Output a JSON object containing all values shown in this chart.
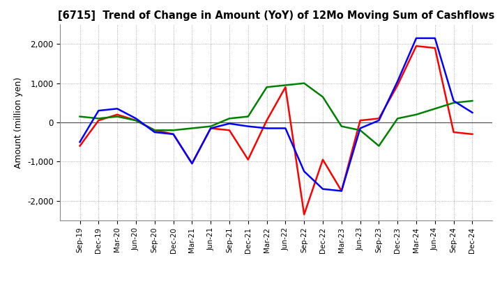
{
  "title": "[6715]  Trend of Change in Amount (YoY) of 12Mo Moving Sum of Cashflows",
  "ylabel": "Amount (million yen)",
  "x_labels": [
    "Sep-19",
    "Dec-19",
    "Mar-20",
    "Jun-20",
    "Sep-20",
    "Dec-20",
    "Mar-21",
    "Jun-21",
    "Sep-21",
    "Dec-21",
    "Mar-22",
    "Jun-22",
    "Sep-22",
    "Dec-22",
    "Mar-23",
    "Jun-23",
    "Sep-23",
    "Dec-23",
    "Mar-24",
    "Jun-24",
    "Sep-24",
    "Dec-24"
  ],
  "operating": [
    -600,
    50,
    200,
    50,
    -200,
    -300,
    -1050,
    -150,
    -200,
    -950,
    50,
    900,
    -2350,
    -950,
    -1750,
    50,
    100,
    950,
    1950,
    1900,
    -250,
    -300
  ],
  "investing": [
    150,
    100,
    150,
    50,
    -200,
    -200,
    -150,
    -100,
    100,
    150,
    900,
    950,
    1000,
    650,
    -100,
    -200,
    -600,
    100,
    200,
    350,
    500,
    550
  ],
  "free": [
    -500,
    300,
    350,
    100,
    -250,
    -300,
    -1050,
    -150,
    -30,
    -100,
    -150,
    -150,
    -1250,
    -1700,
    -1750,
    -150,
    50,
    1050,
    2150,
    2150,
    550,
    250
  ],
  "operating_color": "#FF0000",
  "investing_color": "#008000",
  "free_color": "#0000FF",
  "ylim": [
    -2500,
    2500
  ],
  "yticks": [
    -2000,
    -1000,
    0,
    1000,
    2000
  ],
  "background_color": "#FFFFFF",
  "grid_color": "#999999"
}
